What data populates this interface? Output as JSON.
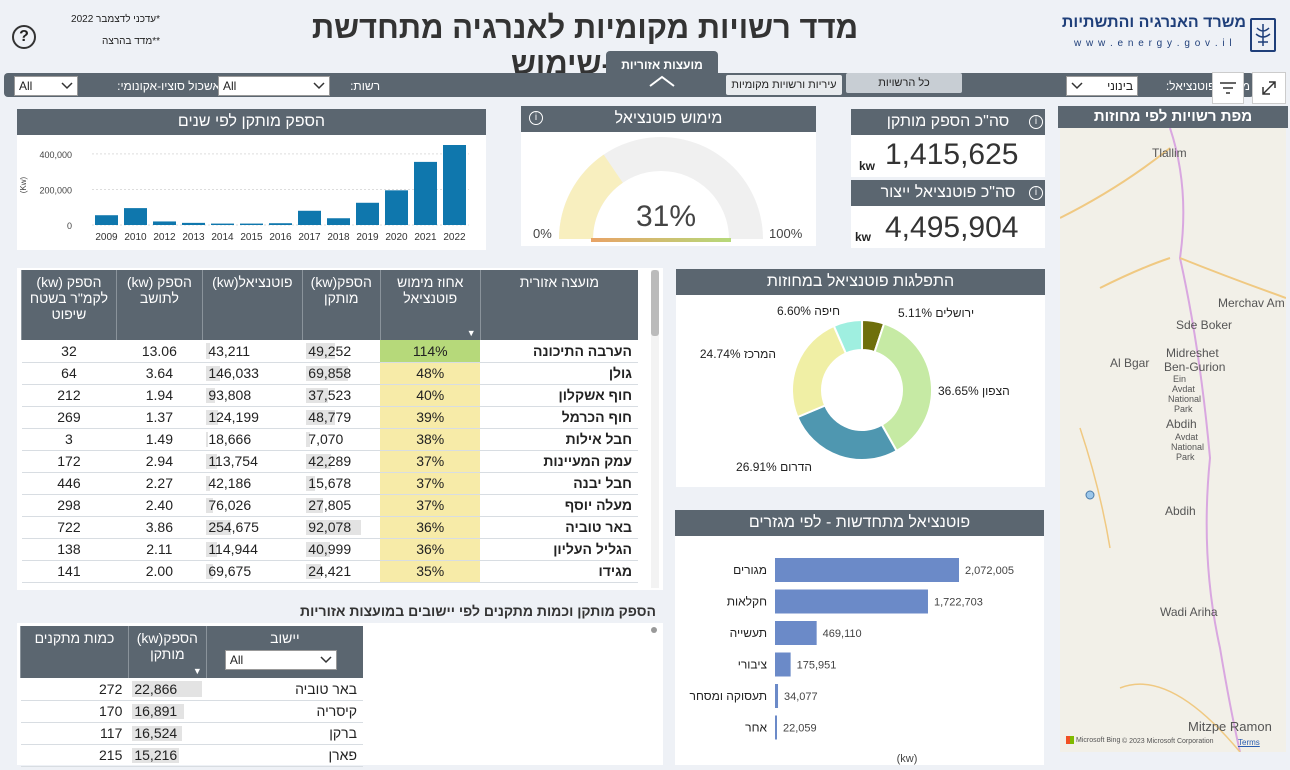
{
  "header": {
    "title": "מדד רשויות מקומיות לאנרגיה מתחדשת בדו-שימוש",
    "ministry_name": "משרד האנרגיה והתשתיות",
    "ministry_url": "w w w . e n e r g y . g o v . i l",
    "updated_note": "*עדכני לדצמבר 2022",
    "explain_note": "**מדד בהרצה",
    "help_icon": "question-icon"
  },
  "tab_top": {
    "label": "מועצות אזוריות"
  },
  "filters": {
    "socio_label": "אשכול סוציו-אקונומי:",
    "socio_value": "All",
    "authority_label": "רשות:",
    "authority_value": "All",
    "tab_cities": "עיריות ורשויות מקומיות",
    "tab_all": "כל הרשויות",
    "potential_label": "מימוש פוטנציאל:",
    "potential_value": "בינוני"
  },
  "capacity_by_year": {
    "title": "הספק מותקן לפי שנים",
    "ylabel": "(Kw)"
  },
  "gauge": {
    "title": "מימוש פוטנציאל",
    "value_label": "31%",
    "value": 0.31,
    "min_label": "0%",
    "max_label": "100%"
  },
  "kpi_installed": {
    "title": "סה\"כ הספק מותקן",
    "value": "1,415,625",
    "unit": "kw"
  },
  "kpi_potential": {
    "title": "סה\"כ פוטנציאל ייצור",
    "value": "4,495,904",
    "unit": "kw"
  },
  "map": {
    "title": "מפת רשויות לפי מחוזות",
    "places": [
      "Tlallim",
      "Merchav Am",
      "Sde Boker",
      "Midreshet",
      "Ben-Gurion",
      "Al Bgar",
      "Ein",
      "Avdat",
      "National",
      "Park",
      "Abdih",
      "Avdat",
      "National",
      "Park",
      "Abdih",
      "Wadi Ariha",
      "Mitzpe Ramon"
    ],
    "credit": "© 2023 Microsoft Corporation",
    "terms": "Terms",
    "bing": "Microsoft Bing"
  },
  "regional_table": {
    "headers": [
      "מועצה אזורית",
      "אחוז מימוש פוטנציאל",
      "הספק(kw) מותקן",
      "פוטנציאל(kw)",
      "הספק (kw) לתושב",
      "הספק (kw) לקמ\"ר בשטח שיפוט"
    ],
    "rows": [
      {
        "name": "הערבה התיכונה",
        "pct": "114%",
        "installed": "49,252",
        "potential": "43,211",
        "per_res": "13.06",
        "per_km": "32"
      },
      {
        "name": "גולן",
        "pct": "48%",
        "installed": "69,858",
        "potential": "146,033",
        "per_res": "3.64",
        "per_km": "64"
      },
      {
        "name": "חוף אשקלון",
        "pct": "40%",
        "installed": "37,523",
        "potential": "93,808",
        "per_res": "1.94",
        "per_km": "212"
      },
      {
        "name": "חוף הכרמל",
        "pct": "39%",
        "installed": "48,779",
        "potential": "124,199",
        "per_res": "1.37",
        "per_km": "269"
      },
      {
        "name": "חבל אילות",
        "pct": "38%",
        "installed": "7,070",
        "potential": "18,666",
        "per_res": "1.49",
        "per_km": "3"
      },
      {
        "name": "עמק המעיינות",
        "pct": "37%",
        "installed": "42,289",
        "potential": "113,754",
        "per_res": "2.94",
        "per_km": "172"
      },
      {
        "name": "חבל יבנה",
        "pct": "37%",
        "installed": "15,678",
        "potential": "42,186",
        "per_res": "2.27",
        "per_km": "446"
      },
      {
        "name": "מעלה יוסף",
        "pct": "37%",
        "installed": "27,805",
        "potential": "76,026",
        "per_res": "2.40",
        "per_km": "298"
      },
      {
        "name": "באר טוביה",
        "pct": "36%",
        "installed": "92,078",
        "potential": "254,675",
        "per_res": "3.86",
        "per_km": "722"
      },
      {
        "name": "הגליל העליון",
        "pct": "36%",
        "installed": "40,999",
        "potential": "114,944",
        "per_res": "2.11",
        "per_km": "138"
      },
      {
        "name": "מגידו",
        "pct": "35%",
        "installed": "24,421",
        "potential": "69,675",
        "per_res": "2.00",
        "per_km": "141"
      }
    ]
  },
  "district_donut": {
    "title": "התפלגות פוטנציאל במחוזות"
  },
  "sectors": {
    "title": "פוטנציאל מתחדשות - לפי מגזרים",
    "unit_label": "(kw)"
  },
  "settlements": {
    "title": "הספק מותקן וכמות מתקנים לפי יישובים במועצות אזוריות",
    "headers": [
      "יישוב",
      "הספק(kw) מותקן",
      "כמות מתקנים"
    ],
    "filter_value": "All",
    "rows": [
      {
        "name": "באר טוביה",
        "installed": "22,866",
        "count": "272",
        "frac": 1.0
      },
      {
        "name": "קיסריה",
        "installed": "16,891",
        "count": "170",
        "frac": 0.74
      },
      {
        "name": "ברקן",
        "installed": "16,524",
        "count": "117",
        "frac": 0.72
      },
      {
        "name": "פארן",
        "installed": "15,216",
        "count": "215",
        "frac": 0.67
      }
    ]
  },
  "chart_data": [
    {
      "type": "bar",
      "title": "הספק מותקן לפי שנים",
      "ylabel": "(Kw)",
      "categories": [
        "2009",
        "2010",
        "2012",
        "2013",
        "2014",
        "2015",
        "2016",
        "2017",
        "2018",
        "2019",
        "2020",
        "2021",
        "2022"
      ],
      "values": [
        55000,
        95000,
        20000,
        12000,
        8000,
        8000,
        10000,
        80000,
        38000,
        125000,
        195000,
        355000,
        450000
      ],
      "ylim": [
        0,
        450000
      ],
      "yticks": [
        "0",
        "200,000",
        "400,000"
      ],
      "ytick_values": [
        0,
        200000,
        400000
      ]
    },
    {
      "type": "pie",
      "title": "התפלגות פוטנציאל במחוזות",
      "labels": [
        "הצפון",
        "הדרום",
        "המרכז",
        "חיפה",
        "ירושלים"
      ],
      "values": [
        36.65,
        26.91,
        24.74,
        6.6,
        5.11
      ],
      "value_labels": [
        "36.65%",
        "26.91%",
        "24.74%",
        "6.60%",
        "5.11%"
      ],
      "colors": [
        "#c6eaa4",
        "#4f97b0",
        "#f0efa5",
        "#9fefe0",
        "#6e6f0c"
      ]
    },
    {
      "type": "bar",
      "title": "פוטנציאל מתחדשות - לפי מגזרים",
      "xlabel": "(kw)",
      "categories": [
        "מגורים",
        "חקלאות",
        "תעשייה",
        "ציבורי",
        "תעסוקה ומסחר",
        "אחר"
      ],
      "values": [
        2072005,
        1722703,
        469110,
        175951,
        34077,
        22059
      ],
      "value_labels": [
        "2,072,005",
        "1,722,703",
        "469,110",
        "175,951",
        "34,077",
        "22,059"
      ]
    }
  ],
  "colors": {
    "bar": "#0f77ad",
    "header": "#5b6670",
    "hbar": "#6b8ac8",
    "pct_high": "#b6d97a",
    "pct": "#f7eba8",
    "gauge_fill": "#f8efbf",
    "gauge_bg": "#f0f0f0"
  }
}
